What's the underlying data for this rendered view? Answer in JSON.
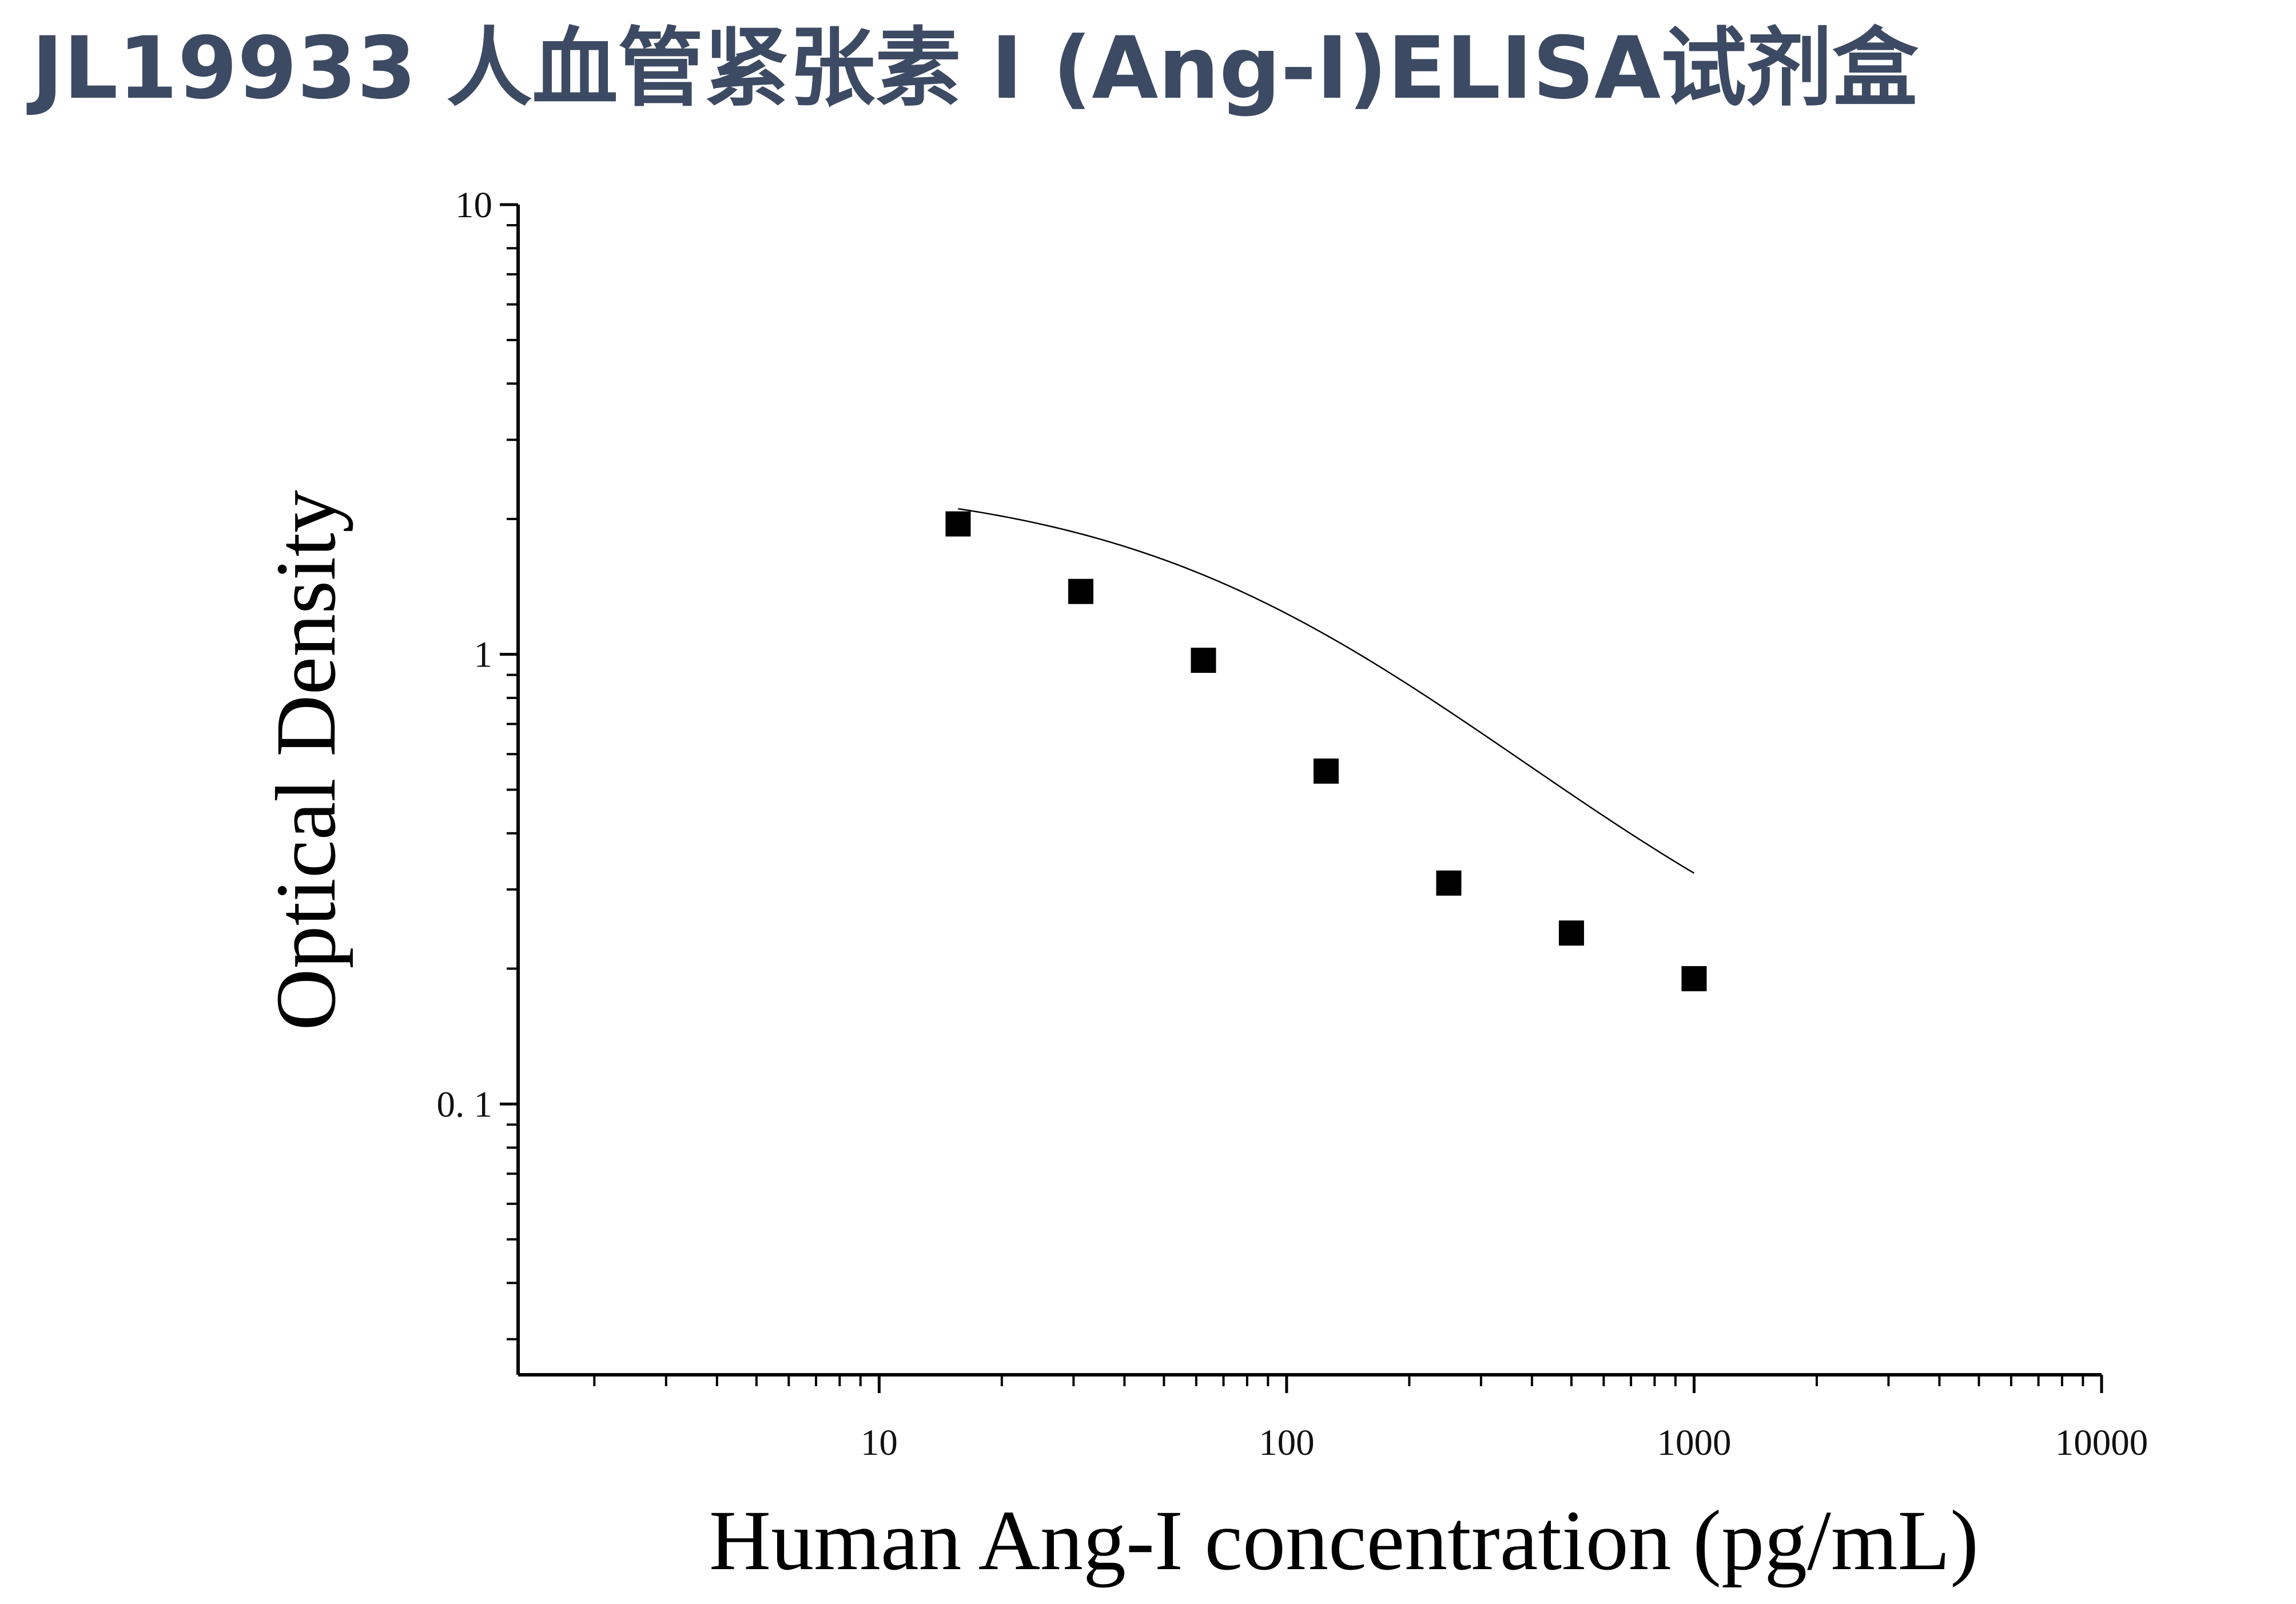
{
  "page": {
    "title": "JL19933 人血管紧张素 I (Ang-I)ELISA试剂盒"
  },
  "chart_data": {
    "type": "scatter",
    "title": "",
    "xlabel": "Human Ang-I concentration (pg/mL)",
    "ylabel": "Optical Density",
    "x_scale": "log",
    "y_scale": "log",
    "xlim": [
      1.3,
      10000
    ],
    "ylim": [
      0.025,
      10
    ],
    "x_tick_labels": [
      "10",
      "100",
      "1000",
      "10000"
    ],
    "y_tick_labels": [
      "10",
      "1",
      "0. 1"
    ],
    "grid": false,
    "legend": "none",
    "series": [
      {
        "marker": "square",
        "color": "#000000",
        "x": [
          15.625,
          31.25,
          62.5,
          125,
          250,
          500,
          1000
        ],
        "y": [
          1.95,
          1.38,
          0.97,
          0.55,
          0.31,
          0.24,
          0.19
        ]
      }
    ],
    "fit_curve": {
      "type": "4PL",
      "color": "#000000",
      "a": 2.45,
      "d": 0.135,
      "c": 90,
      "b": 1.0,
      "x_range": [
        15.625,
        1000
      ]
    }
  }
}
